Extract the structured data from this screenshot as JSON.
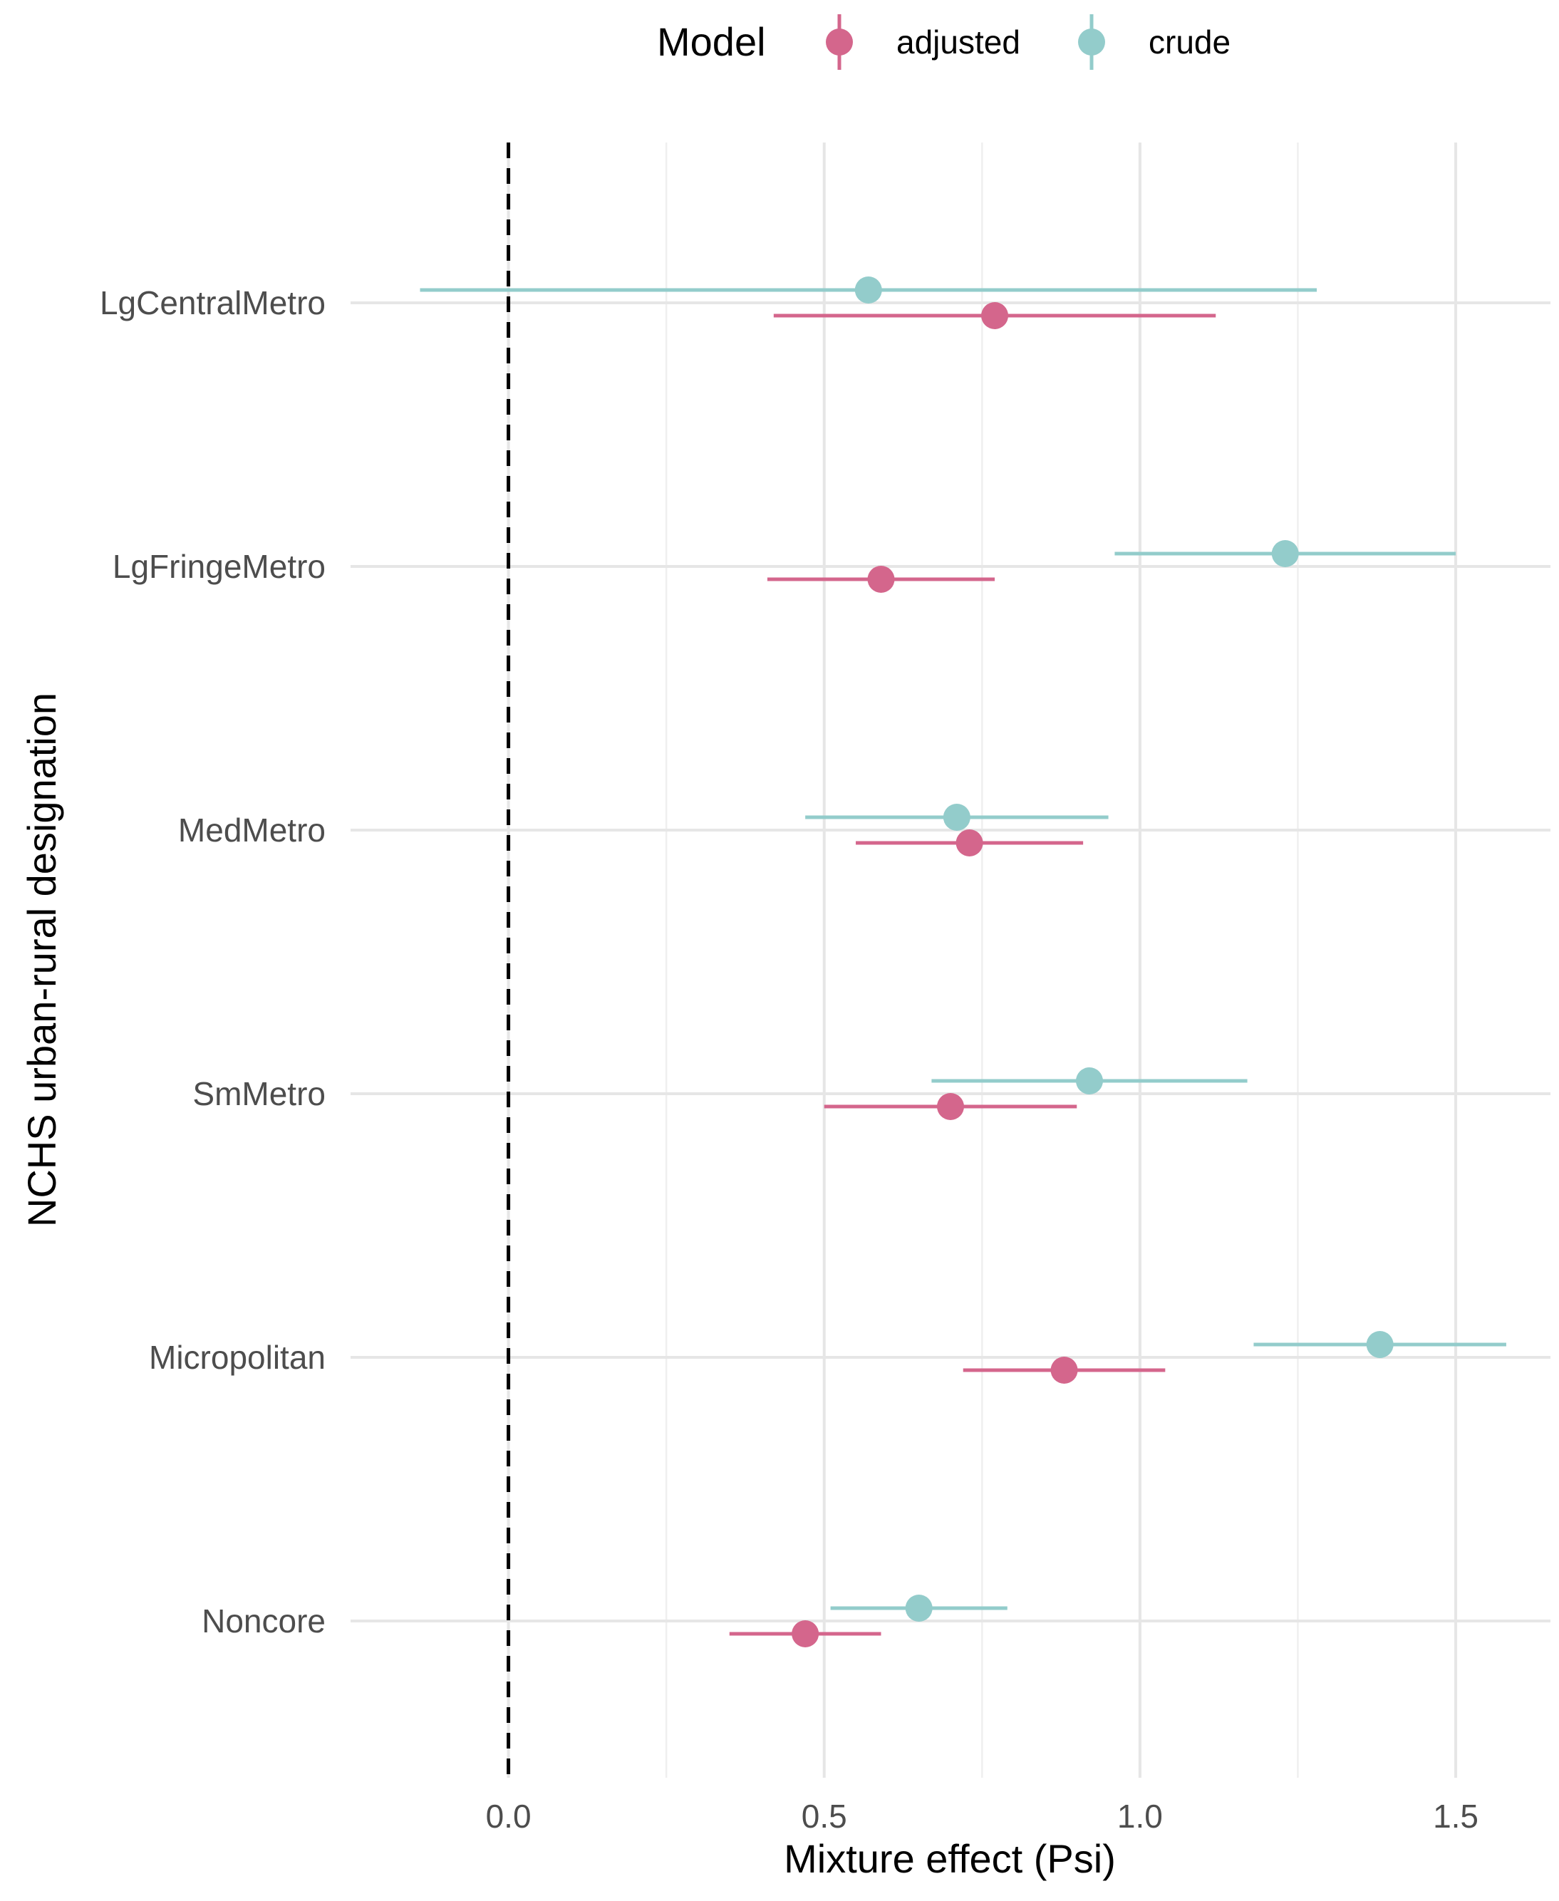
{
  "chart_data": {
    "type": "forest",
    "xlabel": "Mixture effect (Psi)",
    "ylabel": "NCHS urban-rural designation",
    "xlim": [
      -0.25,
      1.65
    ],
    "x_ticks": [
      "0.0",
      "0.5",
      "1.0",
      "1.5"
    ],
    "x_tick_values": [
      0.0,
      0.5,
      1.0,
      1.5
    ],
    "reference_line": 0,
    "reference_line_style": "dashed",
    "grid": true,
    "legend": {
      "title": "Model",
      "placement": "top",
      "entries": [
        "adjusted",
        "crude"
      ]
    },
    "categories": [
      "LgCentralMetro",
      "LgFringeMetro",
      "MedMetro",
      "SmMetro",
      "Micropolitan",
      "Noncore"
    ],
    "series": [
      {
        "name": "adjusted",
        "color": "#d4668c",
        "estimate": [
          0.77,
          0.59,
          0.73,
          0.7,
          0.88,
          0.47
        ],
        "lower": [
          0.42,
          0.41,
          0.55,
          0.5,
          0.72,
          0.35
        ],
        "upper": [
          1.12,
          0.77,
          0.91,
          0.9,
          1.04,
          0.59
        ]
      },
      {
        "name": "crude",
        "color": "#93cccb",
        "estimate": [
          0.57,
          1.23,
          0.71,
          0.92,
          1.38,
          0.65
        ],
        "lower": [
          -0.14,
          0.96,
          0.47,
          0.67,
          1.18,
          0.51
        ],
        "upper": [
          1.28,
          1.5,
          0.95,
          1.17,
          1.58,
          0.79
        ]
      }
    ]
  }
}
